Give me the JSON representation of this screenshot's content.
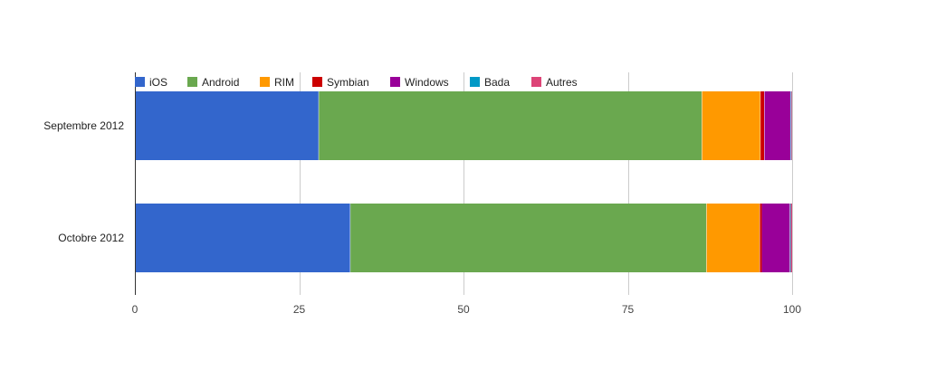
{
  "chart_data": {
    "type": "bar",
    "orientation": "horizontal",
    "stacked": true,
    "categories": [
      "Septembre 2012",
      "Octobre 2012"
    ],
    "series": [
      {
        "name": "iOS",
        "color": "#3366cc",
        "values": [
          28.0,
          32.8
        ]
      },
      {
        "name": "Android",
        "color": "#6aa84f",
        "values": [
          58.3,
          54.2
        ]
      },
      {
        "name": "RIM",
        "color": "#ff9900",
        "values": [
          8.9,
          8.1
        ]
      },
      {
        "name": "Symbian",
        "color": "#cc0000",
        "values": [
          0.6,
          0.3
        ]
      },
      {
        "name": "Windows",
        "color": "#990099",
        "values": [
          4.0,
          4.3
        ]
      },
      {
        "name": "Bada",
        "color": "#0099c6",
        "values": [
          0.1,
          0.1
        ]
      },
      {
        "name": "Autres",
        "color": "#dd4477",
        "values": [
          0.1,
          0.2
        ]
      }
    ],
    "xlim": [
      0,
      100
    ],
    "xticks": [
      "0",
      "25",
      "50",
      "75",
      "100"
    ],
    "grid": true,
    "legend_position": "top-left",
    "title": "",
    "xlabel": "",
    "ylabel": ""
  }
}
